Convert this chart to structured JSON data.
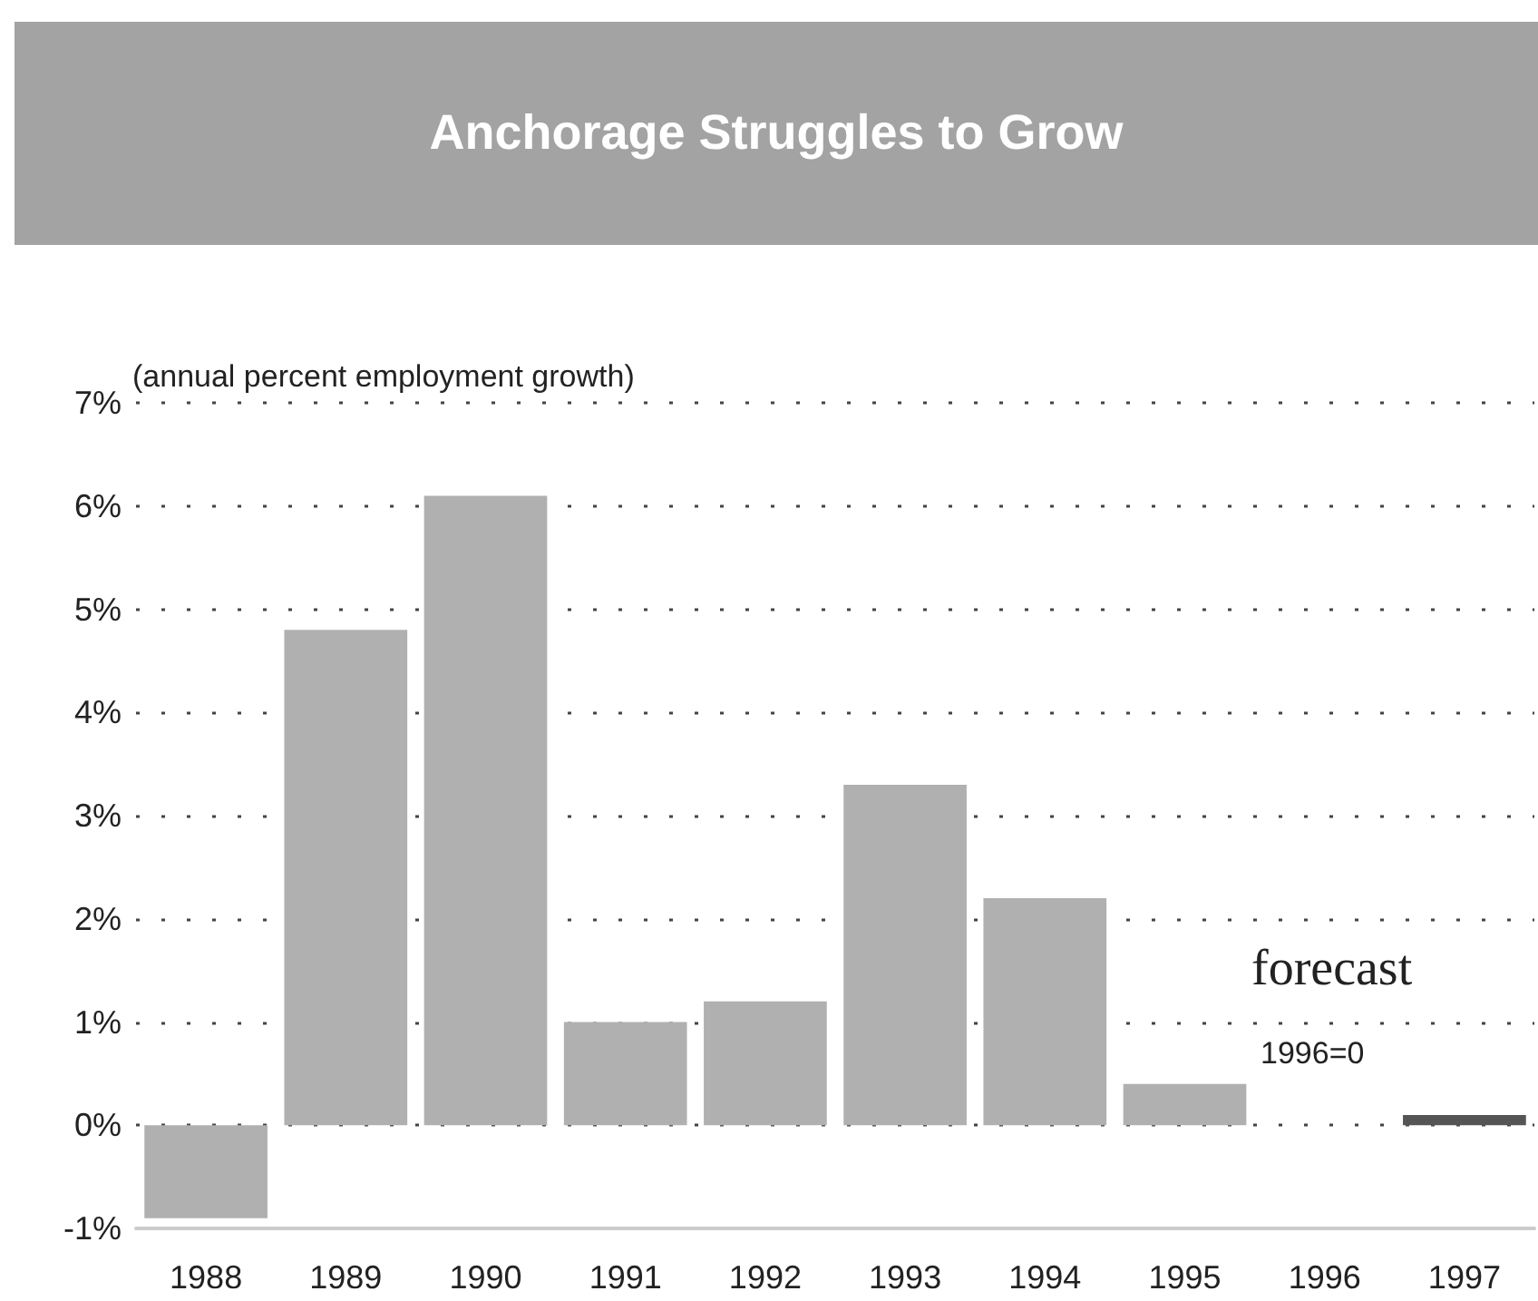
{
  "chart_data": {
    "type": "bar",
    "title": "Anchorage Struggles to Grow",
    "ylabel": "(annual percent employment growth)",
    "categories": [
      "1988",
      "1989",
      "1990",
      "1991",
      "1992",
      "1993",
      "1994",
      "1995",
      "1996",
      "1997"
    ],
    "values": [
      -0.9,
      4.8,
      6.1,
      1.0,
      1.2,
      3.3,
      2.2,
      0.4,
      0,
      0.1
    ],
    "colors": [
      "#b0b0b0",
      "#b0b0b0",
      "#b0b0b0",
      "#b0b0b0",
      "#b0b0b0",
      "#b0b0b0",
      "#b0b0b0",
      "#b0b0b0",
      "#b0b0b0",
      "#555555"
    ],
    "ylim": [
      -1,
      7
    ],
    "yticks": [
      {
        "value": -1,
        "label": "-1%"
      },
      {
        "value": 0,
        "label": "0%"
      },
      {
        "value": 1,
        "label": "1%"
      },
      {
        "value": 2,
        "label": "2%"
      },
      {
        "value": 3,
        "label": "3%"
      },
      {
        "value": 4,
        "label": "4%"
      },
      {
        "value": 5,
        "label": "5%"
      },
      {
        "value": 6,
        "label": "6%"
      },
      {
        "value": 7,
        "label": "7%"
      }
    ],
    "grid": "y",
    "annotations": [
      "forecast",
      "1996=0"
    ]
  }
}
